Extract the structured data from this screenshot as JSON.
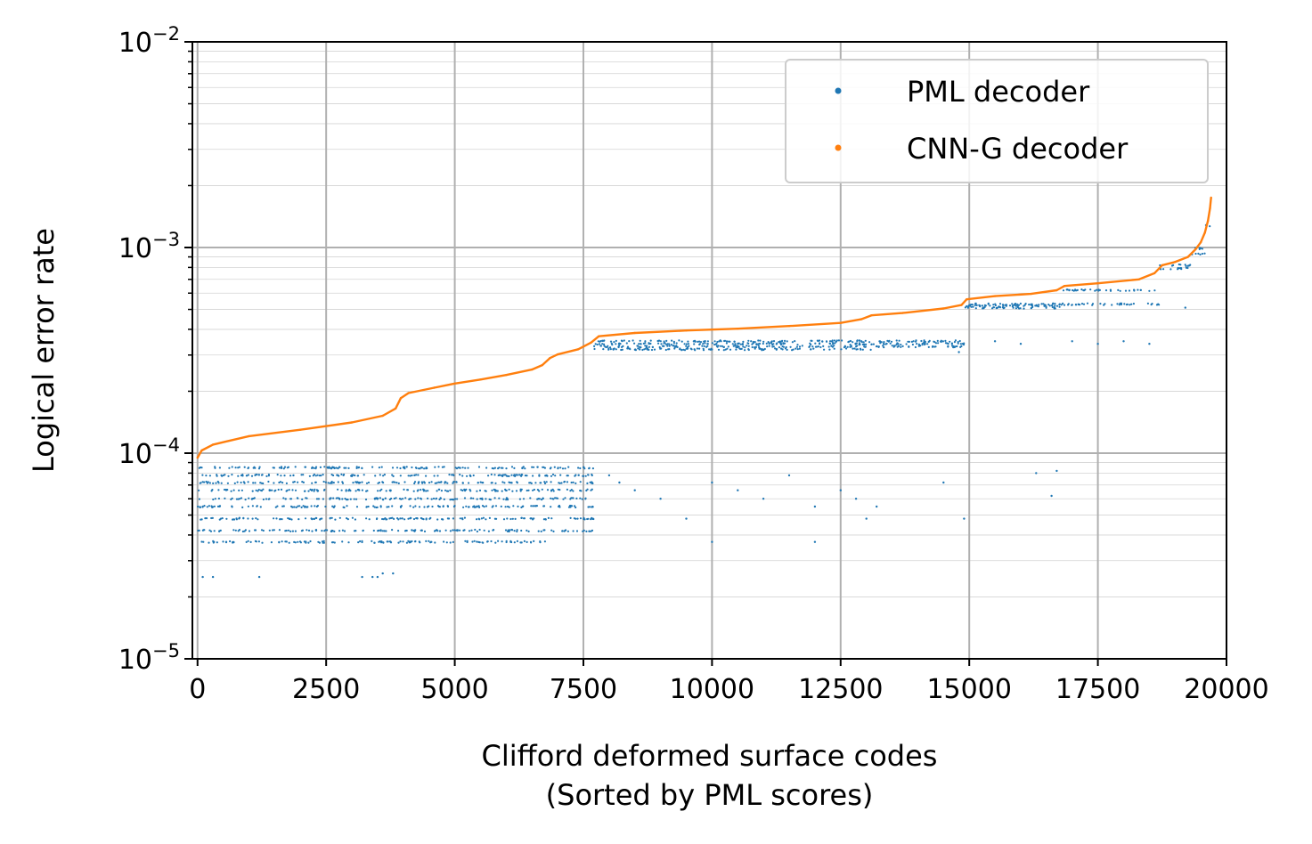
{
  "chart_data": {
    "type": "scatter",
    "xlabel": [
      "Clifford deformed surface codes",
      "(Sorted by PML scores)"
    ],
    "ylabel": "Logical error rate",
    "xlim": [
      -100,
      20000
    ],
    "ylim": [
      1e-05,
      0.01
    ],
    "yscale": "log",
    "grid": true,
    "legend_position": "top-right",
    "x_ticks": [
      0,
      2500,
      5000,
      7500,
      10000,
      12500,
      15000,
      17500,
      20000
    ],
    "x_tick_labels": [
      "0",
      "2500",
      "5000",
      "7500",
      "10000",
      "12500",
      "15000",
      "17500",
      "20000"
    ],
    "y_ticks": [
      1e-05,
      0.0001,
      0.001,
      0.01
    ],
    "y_tick_labels": [
      {
        "base": "10",
        "exp": "−5"
      },
      {
        "base": "10",
        "exp": "−4"
      },
      {
        "base": "10",
        "exp": "−3"
      },
      {
        "base": "10",
        "exp": "−2"
      }
    ],
    "series": [
      {
        "name": "PML decoder",
        "color": "#1f77b4",
        "marker": "point",
        "clusters": [
          {
            "x_range": [
              0,
              3900
            ],
            "levels": [
              8.5e-05,
              7.8e-05,
              7.2e-05,
              6.6e-05,
              6e-05,
              5.5e-05,
              4.8e-05,
              4.2e-05,
              3.7e-05
            ],
            "density": 0.9
          },
          {
            "x_range": [
              3900,
              6800
            ],
            "levels": [
              8.5e-05,
              7.8e-05,
              7.2e-05,
              6.6e-05,
              6e-05,
              5.5e-05,
              4.8e-05,
              4.2e-05,
              3.7e-05
            ],
            "density": 1.0
          },
          {
            "x_range": [
              6800,
              7700
            ],
            "levels": [
              8.5e-05,
              7.8e-05,
              7.2e-05,
              6.6e-05,
              6e-05,
              5.5e-05,
              4.8e-05,
              4.2e-05
            ],
            "density": 1.0
          },
          {
            "x_range": [
              7700,
              13100
            ],
            "levels": [
              0.00035,
              0.00034,
              0.00033,
              0.00032
            ],
            "density": 1.0
          },
          {
            "x_range": [
              13100,
              14900
            ],
            "levels": [
              0.00035,
              0.00034,
              0.00033
            ],
            "density": 1.0
          },
          {
            "x_range": [
              14900,
              16800
            ],
            "levels": [
              0.00053,
              0.00052,
              0.00051
            ],
            "density": 1.0
          },
          {
            "x_range": [
              16800,
              18700
            ],
            "levels": [
              0.00062,
              0.00053
            ],
            "density": 1.0
          },
          {
            "x_range": [
              18700,
              19300
            ],
            "levels": [
              0.00082,
              0.00079
            ],
            "density": 1.0
          },
          {
            "x_range": [
              19300,
              19600
            ],
            "levels": [
              0.00099,
              0.00093
            ],
            "density": 1.0
          },
          {
            "x_range": [
              19600,
              19680
            ],
            "levels": [
              0.00128
            ],
            "density": 1.0
          }
        ],
        "sparse_points": [
          {
            "x": 100,
            "y": 2.5e-05
          },
          {
            "x": 300,
            "y": 2.5e-05
          },
          {
            "x": 1200,
            "y": 2.5e-05
          },
          {
            "x": 3200,
            "y": 2.5e-05
          },
          {
            "x": 3500,
            "y": 2.5e-05
          },
          {
            "x": 3800,
            "y": 2.6e-05
          },
          {
            "x": 3600,
            "y": 2.6e-05
          },
          {
            "x": 3400,
            "y": 2.5e-05
          },
          {
            "x": 8000,
            "y": 7.8e-05
          },
          {
            "x": 8200,
            "y": 7.2e-05
          },
          {
            "x": 8500,
            "y": 6.6e-05
          },
          {
            "x": 9000,
            "y": 6e-05
          },
          {
            "x": 9500,
            "y": 4.8e-05
          },
          {
            "x": 10000,
            "y": 7.2e-05
          },
          {
            "x": 10500,
            "y": 6.6e-05
          },
          {
            "x": 11000,
            "y": 6e-05
          },
          {
            "x": 11500,
            "y": 7.8e-05
          },
          {
            "x": 12000,
            "y": 5.5e-05
          },
          {
            "x": 12500,
            "y": 6.6e-05
          },
          {
            "x": 12800,
            "y": 6e-05
          },
          {
            "x": 13000,
            "y": 4.8e-05
          },
          {
            "x": 13200,
            "y": 5.5e-05
          },
          {
            "x": 14500,
            "y": 7.2e-05
          },
          {
            "x": 14900,
            "y": 4.8e-05
          },
          {
            "x": 16300,
            "y": 8e-05
          },
          {
            "x": 16700,
            "y": 8.2e-05
          },
          {
            "x": 16600,
            "y": 6.2e-05
          },
          {
            "x": 10000,
            "y": 3.7e-05
          },
          {
            "x": 12000,
            "y": 3.7e-05
          },
          {
            "x": 15500,
            "y": 0.00035
          },
          {
            "x": 16000,
            "y": 0.00034
          },
          {
            "x": 17000,
            "y": 0.00035
          },
          {
            "x": 17500,
            "y": 0.00034
          },
          {
            "x": 18000,
            "y": 0.00035
          },
          {
            "x": 18500,
            "y": 0.00034
          },
          {
            "x": 14800,
            "y": 0.00031
          },
          {
            "x": 19200,
            "y": 0.00051
          }
        ]
      },
      {
        "name": "CNN-G decoder",
        "color": "#ff7f0e",
        "marker": "line",
        "curve": [
          [
            0,
            9.5e-05
          ],
          [
            80,
            0.000103
          ],
          [
            300,
            0.00011
          ],
          [
            1000,
            0.000121
          ],
          [
            2000,
            0.00013
          ],
          [
            3000,
            0.000141
          ],
          [
            3600,
            0.000152
          ],
          [
            3850,
            0.000165
          ],
          [
            3950,
            0.000185
          ],
          [
            4100,
            0.000196
          ],
          [
            4600,
            0.000208
          ],
          [
            5000,
            0.000218
          ],
          [
            5500,
            0.000228
          ],
          [
            6000,
            0.00024
          ],
          [
            6500,
            0.000255
          ],
          [
            6700,
            0.000268
          ],
          [
            6850,
            0.00029
          ],
          [
            7000,
            0.000302
          ],
          [
            7400,
            0.00032
          ],
          [
            7650,
            0.000345
          ],
          [
            7800,
            0.00037
          ],
          [
            8500,
            0.000384
          ],
          [
            9500,
            0.000395
          ],
          [
            10500,
            0.000403
          ],
          [
            11500,
            0.000415
          ],
          [
            12500,
            0.00043
          ],
          [
            12900,
            0.000448
          ],
          [
            13100,
            0.000468
          ],
          [
            13700,
            0.00048
          ],
          [
            14500,
            0.000505
          ],
          [
            14850,
            0.000525
          ],
          [
            14950,
            0.00056
          ],
          [
            15500,
            0.00058
          ],
          [
            16200,
            0.000595
          ],
          [
            16700,
            0.00062
          ],
          [
            16850,
            0.00065
          ],
          [
            17500,
            0.00067
          ],
          [
            18300,
            0.0007
          ],
          [
            18600,
            0.00075
          ],
          [
            18750,
            0.00082
          ],
          [
            19000,
            0.00085
          ],
          [
            19250,
            0.0009
          ],
          [
            19400,
            0.00098
          ],
          [
            19500,
            0.00106
          ],
          [
            19580,
            0.00118
          ],
          [
            19640,
            0.00135
          ],
          [
            19680,
            0.00155
          ],
          [
            19700,
            0.00175
          ]
        ]
      }
    ]
  }
}
